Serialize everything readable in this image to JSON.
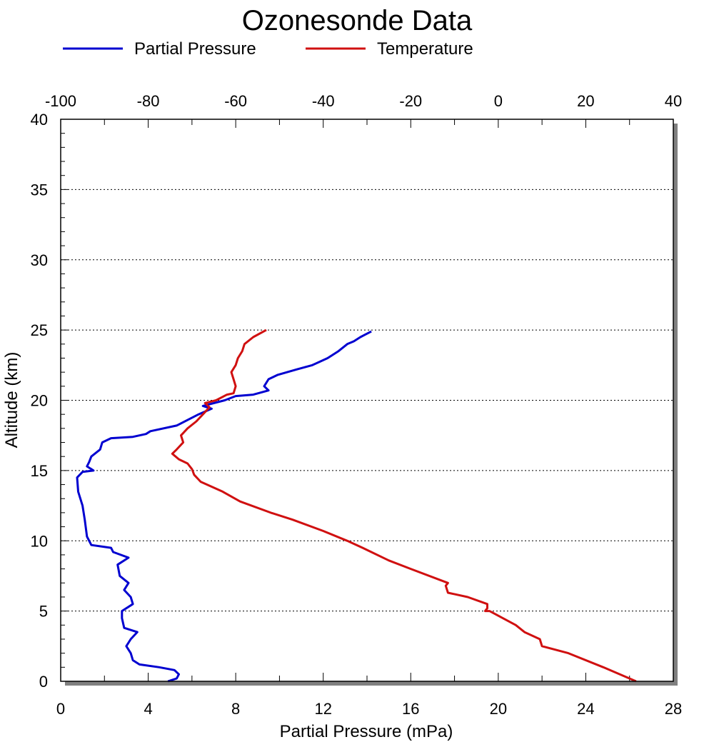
{
  "chart_data": {
    "type": "line",
    "title": "Ozonesonde Data",
    "xlabel": "Partial Pressure (mPa)",
    "ylabel": "Altitude (km)",
    "x_bottom": {
      "label": "Partial Pressure (mPa)",
      "range": [
        0,
        28
      ],
      "ticks": [
        "0",
        "4",
        "8",
        "12",
        "16",
        "20",
        "24",
        "28"
      ]
    },
    "x_top": {
      "range": [
        -100,
        40
      ],
      "ticks": [
        "-100",
        "-80",
        "-60",
        "-40",
        "-20",
        "0",
        "20",
        "40"
      ]
    },
    "y": {
      "label": "Altitude (km)",
      "range": [
        0,
        40
      ],
      "ticks": [
        "0",
        "5",
        "10",
        "15",
        "20",
        "25",
        "30",
        "35",
        "40"
      ]
    },
    "grid": "horizontal dotted at major y ticks",
    "legend_position": "top",
    "series": [
      {
        "name": "Partial Pressure",
        "axis": "bottom",
        "color": "#0000d0",
        "points": [
          [
            4.9,
            0.0
          ],
          [
            5.3,
            0.2
          ],
          [
            5.4,
            0.5
          ],
          [
            5.2,
            0.8
          ],
          [
            4.5,
            1.0
          ],
          [
            3.6,
            1.2
          ],
          [
            3.3,
            1.5
          ],
          [
            3.2,
            2.0
          ],
          [
            3.0,
            2.5
          ],
          [
            3.2,
            3.0
          ],
          [
            3.5,
            3.5
          ],
          [
            2.9,
            3.8
          ],
          [
            2.8,
            4.5
          ],
          [
            2.8,
            5.0
          ],
          [
            3.3,
            5.5
          ],
          [
            3.2,
            6.0
          ],
          [
            2.9,
            6.5
          ],
          [
            3.1,
            7.0
          ],
          [
            2.7,
            7.5
          ],
          [
            2.6,
            8.3
          ],
          [
            3.1,
            8.8
          ],
          [
            2.4,
            9.2
          ],
          [
            2.3,
            9.5
          ],
          [
            1.4,
            9.7
          ],
          [
            1.2,
            10.3
          ],
          [
            1.1,
            11.5
          ],
          [
            1.0,
            12.5
          ],
          [
            0.8,
            13.5
          ],
          [
            0.75,
            14.5
          ],
          [
            1.0,
            14.9
          ],
          [
            1.5,
            15.0
          ],
          [
            1.2,
            15.3
          ],
          [
            1.3,
            15.6
          ],
          [
            1.4,
            16.0
          ],
          [
            1.8,
            16.5
          ],
          [
            1.9,
            17.0
          ],
          [
            2.3,
            17.3
          ],
          [
            3.3,
            17.4
          ],
          [
            3.9,
            17.6
          ],
          [
            4.1,
            17.8
          ],
          [
            5.3,
            18.2
          ],
          [
            6.3,
            19.0
          ],
          [
            6.9,
            19.4
          ],
          [
            6.5,
            19.6
          ],
          [
            7.5,
            20.0
          ],
          [
            8.0,
            20.3
          ],
          [
            8.8,
            20.4
          ],
          [
            9.5,
            20.7
          ],
          [
            9.3,
            21.0
          ],
          [
            9.5,
            21.5
          ],
          [
            9.9,
            21.8
          ],
          [
            10.8,
            22.2
          ],
          [
            11.5,
            22.5
          ],
          [
            12.2,
            23.0
          ],
          [
            12.7,
            23.5
          ],
          [
            13.1,
            24.0
          ],
          [
            13.4,
            24.2
          ],
          [
            13.7,
            24.5
          ],
          [
            14.2,
            24.9
          ]
        ]
      },
      {
        "name": "Temperature",
        "axis": "top",
        "color": "#d01010",
        "points": [
          [
            31.5,
            0.0
          ],
          [
            24.0,
            1.0
          ],
          [
            16.0,
            2.0
          ],
          [
            10.0,
            2.5
          ],
          [
            9.5,
            3.0
          ],
          [
            6.0,
            3.5
          ],
          [
            4.0,
            4.0
          ],
          [
            -2.0,
            5.0
          ],
          [
            -3.0,
            5.0
          ],
          [
            -2.5,
            5.2
          ],
          [
            -2.5,
            5.5
          ],
          [
            -7.0,
            6.0
          ],
          [
            -11.5,
            6.3
          ],
          [
            -12.0,
            6.8
          ],
          [
            -11.5,
            7.0
          ],
          [
            -20.0,
            8.0
          ],
          [
            -25.0,
            8.6
          ],
          [
            -31.0,
            9.5
          ],
          [
            -34.5,
            10.0
          ],
          [
            -40.0,
            10.7
          ],
          [
            -47.0,
            11.5
          ],
          [
            -52.0,
            12.0
          ],
          [
            -59.0,
            12.8
          ],
          [
            -63.0,
            13.5
          ],
          [
            -68.0,
            14.2
          ],
          [
            -69.5,
            14.7
          ],
          [
            -70.0,
            15.1
          ],
          [
            -71.0,
            15.5
          ],
          [
            -73.0,
            15.8
          ],
          [
            -74.5,
            16.2
          ],
          [
            -73.5,
            16.5
          ],
          [
            -72.0,
            17.0
          ],
          [
            -72.5,
            17.5
          ],
          [
            -71.0,
            18.0
          ],
          [
            -69.0,
            18.5
          ],
          [
            -67.5,
            19.0
          ],
          [
            -66.0,
            19.5
          ],
          [
            -67.0,
            19.8
          ],
          [
            -64.5,
            20.0
          ],
          [
            -62.0,
            20.4
          ],
          [
            -60.5,
            20.5
          ],
          [
            -60.0,
            21.0
          ],
          [
            -60.5,
            21.5
          ],
          [
            -61.0,
            22.0
          ],
          [
            -60.0,
            22.5
          ],
          [
            -59.5,
            23.0
          ],
          [
            -58.5,
            23.5
          ],
          [
            -58.0,
            24.0
          ],
          [
            -56.0,
            24.5
          ],
          [
            -53.0,
            25.0
          ]
        ]
      }
    ]
  }
}
